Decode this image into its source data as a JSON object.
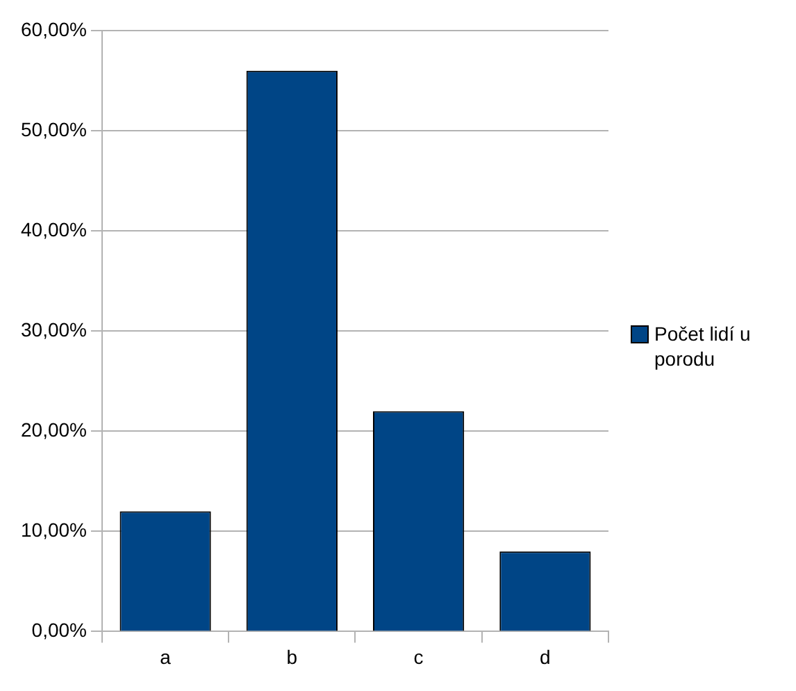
{
  "chart_data": {
    "type": "bar",
    "categories": [
      "a",
      "b",
      "c",
      "d"
    ],
    "series": [
      {
        "name": "Počet lidí u porodu",
        "color": "#004586",
        "values": [
          12,
          56,
          22,
          8
        ]
      }
    ],
    "ylim": [
      0,
      60
    ],
    "yticks": [
      {
        "value": 0,
        "label": "0,00%"
      },
      {
        "value": 10,
        "label": "10,00%"
      },
      {
        "value": 20,
        "label": "20,00%"
      },
      {
        "value": 30,
        "label": "30,00%"
      },
      {
        "value": 40,
        "label": "40,00%"
      },
      {
        "value": 50,
        "label": "50,00%"
      },
      {
        "value": 60,
        "label": "60,00%"
      }
    ],
    "grid": "y",
    "legend": "right"
  }
}
